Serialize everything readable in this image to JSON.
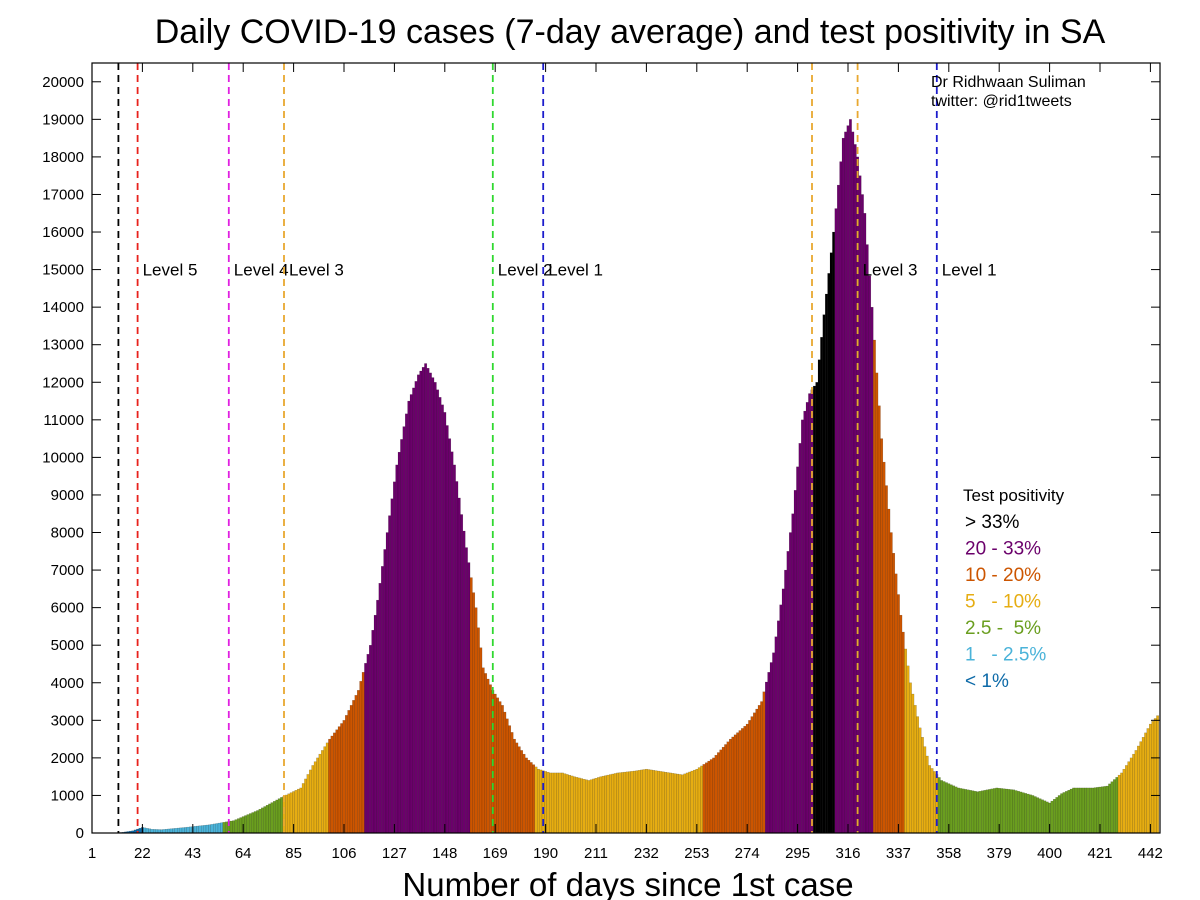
{
  "chart_data": {
    "type": "bar",
    "title": "Daily COVID-19 cases (7-day average) and test positivity in SA",
    "xlabel": "Number of days since 1st case",
    "ylabel": "",
    "xlim": [
      1,
      446
    ],
    "ylim": [
      0,
      20500
    ],
    "x_ticks": [
      1,
      22,
      43,
      64,
      85,
      106,
      127,
      148,
      169,
      190,
      211,
      232,
      253,
      274,
      295,
      316,
      337,
      358,
      379,
      400,
      421,
      442
    ],
    "y_ticks": [
      0,
      1000,
      2000,
      3000,
      4000,
      5000,
      6000,
      7000,
      8000,
      9000,
      10000,
      11000,
      12000,
      13000,
      14000,
      15000,
      16000,
      17000,
      18000,
      19000,
      20000
    ],
    "credit": [
      "Dr Ridhwaan Suliman",
      "twitter: @rid1tweets"
    ],
    "legend": {
      "title": "Test positivity",
      "entries": [
        {
          "label": "> 33%",
          "color": "#000000"
        },
        {
          "label": "20 - 33%",
          "color": "#6b006b"
        },
        {
          "label": "10 - 20%",
          "color": "#cc5500"
        },
        {
          "label": "5   - 10%",
          "color": "#e6ad12"
        },
        {
          "label": "2.5 -  5%",
          "color": "#6a9e1f"
        },
        {
          "label": "1   - 2.5%",
          "color": "#4ab3d9"
        },
        {
          "label": "< 1%",
          "color": "#0d6aa8"
        }
      ]
    },
    "levels": [
      {
        "day": 12,
        "label": "",
        "color": "#000000"
      },
      {
        "day": 20,
        "label": "Level 5",
        "color": "#e8221c"
      },
      {
        "day": 58,
        "label": "Level 4",
        "color": "#e020e0"
      },
      {
        "day": 81,
        "label": "Level 3",
        "color": "#e8a830"
      },
      {
        "day": 168,
        "label": "Level 2",
        "color": "#30d830"
      },
      {
        "day": 189,
        "label": "Level 1",
        "color": "#1c1ccc"
      },
      {
        "day": 301,
        "label": "",
        "color": "#e8a830"
      },
      {
        "day": 320,
        "label": "Level 3",
        "color": "#e8a830"
      },
      {
        "day": 353,
        "label": "Level 1",
        "color": "#1c1ccc"
      }
    ],
    "series_keypoints": [
      [
        10,
        0
      ],
      [
        14,
        20
      ],
      [
        18,
        60
      ],
      [
        22,
        150
      ],
      [
        26,
        100
      ],
      [
        30,
        90
      ],
      [
        40,
        150
      ],
      [
        50,
        220
      ],
      [
        60,
        330
      ],
      [
        70,
        600
      ],
      [
        80,
        950
      ],
      [
        88,
        1200
      ],
      [
        93,
        1800
      ],
      [
        100,
        2500
      ],
      [
        106,
        3000
      ],
      [
        112,
        3800
      ],
      [
        117,
        5000
      ],
      [
        120,
        6200
      ],
      [
        124,
        8000
      ],
      [
        128,
        9800
      ],
      [
        133,
        11500
      ],
      [
        137,
        12200
      ],
      [
        140,
        12500
      ],
      [
        144,
        12000
      ],
      [
        148,
        11200
      ],
      [
        152,
        9800
      ],
      [
        157,
        7600
      ],
      [
        161,
        6000
      ],
      [
        164,
        4400
      ],
      [
        168,
        3800
      ],
      [
        172,
        3400
      ],
      [
        177,
        2500
      ],
      [
        182,
        2000
      ],
      [
        187,
        1700
      ],
      [
        192,
        1600
      ],
      [
        197,
        1600
      ],
      [
        202,
        1500
      ],
      [
        208,
        1400
      ],
      [
        213,
        1500
      ],
      [
        220,
        1600
      ],
      [
        227,
        1650
      ],
      [
        232,
        1700
      ],
      [
        240,
        1620
      ],
      [
        247,
        1550
      ],
      [
        253,
        1700
      ],
      [
        260,
        2000
      ],
      [
        267,
        2500
      ],
      [
        274,
        2900
      ],
      [
        280,
        3500
      ],
      [
        285,
        4800
      ],
      [
        289,
        6500
      ],
      [
        293,
        8500
      ],
      [
        297,
        11000
      ],
      [
        300,
        11700
      ],
      [
        303,
        12000
      ],
      [
        306,
        13800
      ],
      [
        310,
        16000
      ],
      [
        314,
        18500
      ],
      [
        317,
        19000
      ],
      [
        320,
        18000
      ],
      [
        323,
        16500
      ],
      [
        326,
        14000
      ],
      [
        330,
        10500
      ],
      [
        334,
        8000
      ],
      [
        338,
        5800
      ],
      [
        342,
        4000
      ],
      [
        346,
        2800
      ],
      [
        350,
        1800
      ],
      [
        355,
        1400
      ],
      [
        362,
        1200
      ],
      [
        370,
        1100
      ],
      [
        378,
        1200
      ],
      [
        385,
        1150
      ],
      [
        393,
        1000
      ],
      [
        400,
        800
      ],
      [
        405,
        1050
      ],
      [
        410,
        1200
      ],
      [
        418,
        1200
      ],
      [
        424,
        1250
      ],
      [
        430,
        1600
      ],
      [
        436,
        2200
      ],
      [
        442,
        2900
      ],
      [
        446,
        3200
      ]
    ],
    "positivity_bands": [
      {
        "from": 1,
        "to": 22,
        "category": "< 1%"
      },
      {
        "from": 23,
        "to": 55,
        "category": "1 - 2.5%"
      },
      {
        "from": 56,
        "to": 80,
        "category": "2.5 - 5%"
      },
      {
        "from": 81,
        "to": 99,
        "category": "5 - 10%"
      },
      {
        "from": 100,
        "to": 114,
        "category": "10 - 20%"
      },
      {
        "from": 115,
        "to": 158,
        "category": "20 - 33%"
      },
      {
        "from": 159,
        "to": 185,
        "category": "10 - 20%"
      },
      {
        "from": 186,
        "to": 255,
        "category": "5 - 10%"
      },
      {
        "from": 256,
        "to": 281,
        "category": "10 - 20%"
      },
      {
        "from": 282,
        "to": 301,
        "category": "20 - 33%"
      },
      {
        "from": 302,
        "to": 310,
        "category": "> 33%"
      },
      {
        "from": 311,
        "to": 326,
        "category": "20 - 33%"
      },
      {
        "from": 327,
        "to": 339,
        "category": "10 - 20%"
      },
      {
        "from": 340,
        "to": 353,
        "category": "5 - 10%"
      },
      {
        "from": 354,
        "to": 428,
        "category": "2.5 - 5%"
      },
      {
        "from": 429,
        "to": 446,
        "category": "5 - 10%"
      }
    ]
  }
}
